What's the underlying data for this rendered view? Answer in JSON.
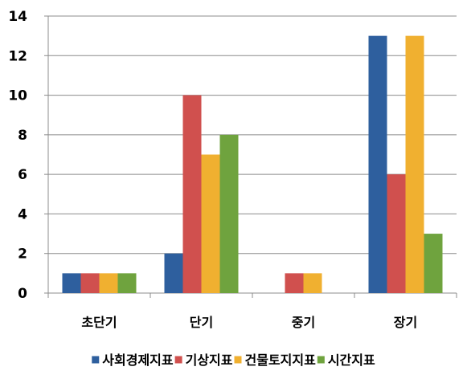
{
  "chart_data": {
    "type": "bar",
    "categories": [
      "초단기",
      "단기",
      "중기",
      "장기"
    ],
    "series": [
      {
        "name": "사회경제지표",
        "color": "#2E5F9E",
        "values": [
          1,
          2,
          0,
          13
        ]
      },
      {
        "name": "기상지표",
        "color": "#D0504E",
        "values": [
          1,
          10,
          1,
          6
        ]
      },
      {
        "name": "건물토지지표",
        "color": "#F0B030",
        "values": [
          1,
          7,
          1,
          13
        ]
      },
      {
        "name": "시간지표",
        "color": "#6FA33E",
        "values": [
          1,
          8,
          0,
          3
        ]
      }
    ],
    "ylim": [
      0,
      14
    ],
    "yticks": [
      0,
      2,
      4,
      6,
      8,
      10,
      12,
      14
    ],
    "title": "",
    "xlabel": "",
    "ylabel": "",
    "grid": true,
    "legend_position": "bottom"
  }
}
